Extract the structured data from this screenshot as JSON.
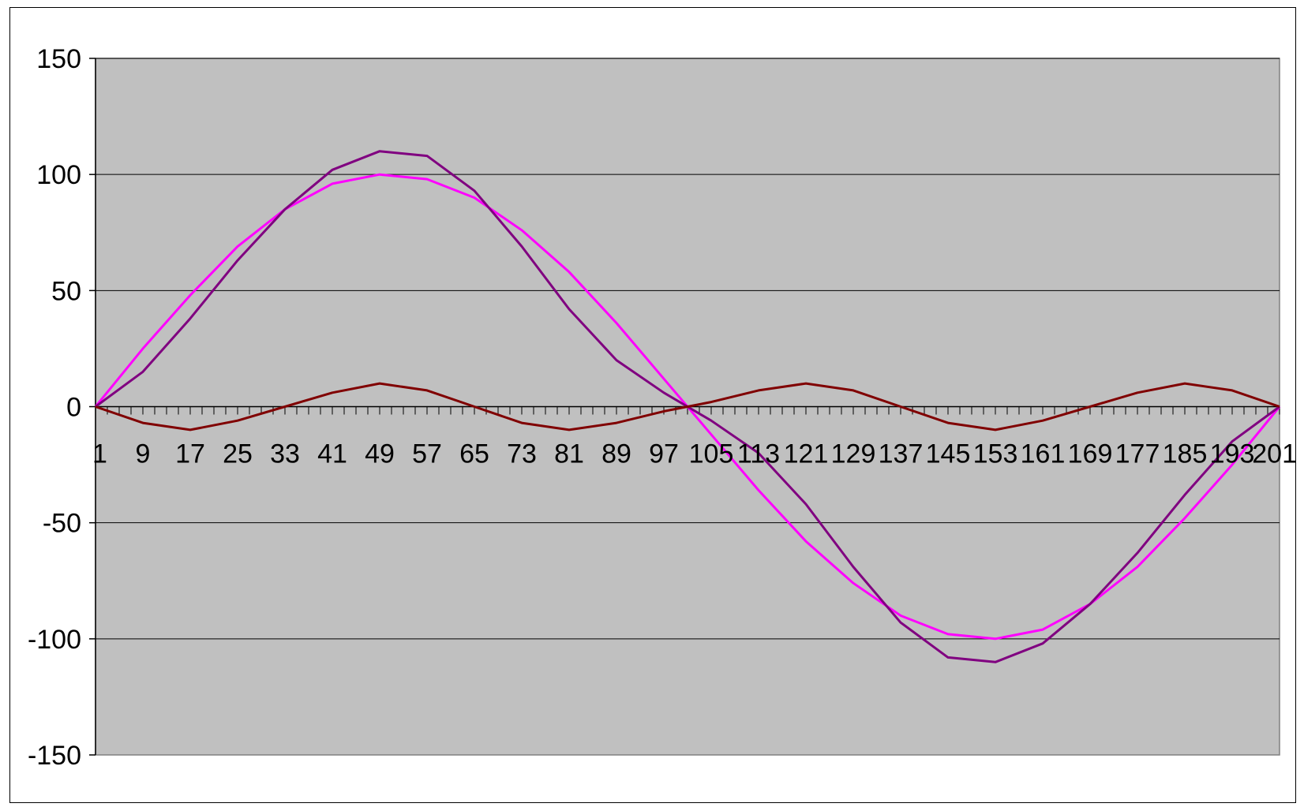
{
  "chart_data": {
    "type": "line",
    "title": "",
    "xlabel": "",
    "ylabel": "",
    "x_start": 1,
    "x_end": 201,
    "x_tick_labels": [
      "1",
      "9",
      "17",
      "25",
      "33",
      "41",
      "49",
      "57",
      "65",
      "73",
      "81",
      "89",
      "97",
      "105",
      "113",
      "121",
      "129",
      "137",
      "145",
      "153",
      "161",
      "169",
      "177",
      "185",
      "193",
      "201"
    ],
    "ylim": [
      -150,
      150
    ],
    "y_ticks": [
      150,
      100,
      50,
      0,
      -50,
      -100,
      -150
    ],
    "y_tick_labels": [
      "150",
      "100",
      "50",
      "0",
      "-50",
      "-100",
      "-150"
    ],
    "grid": "horizontal",
    "legend": "none",
    "plot_background": "#c0c0c0",
    "series": [
      {
        "color": "#ff00ff",
        "x": [
          1,
          9,
          17,
          25,
          33,
          41,
          49,
          57,
          65,
          73,
          81,
          89,
          97,
          101,
          105,
          113,
          121,
          129,
          137,
          145,
          153,
          161,
          169,
          177,
          185,
          193,
          201
        ],
        "values": [
          0,
          25,
          48,
          69,
          85,
          96,
          100,
          98,
          90,
          76,
          58,
          36,
          12,
          0,
          -12,
          -36,
          -58,
          -76,
          -90,
          -98,
          -100,
          -96,
          -85,
          -69,
          -48,
          -25,
          0
        ]
      },
      {
        "color": "#800080",
        "x": [
          1,
          9,
          17,
          25,
          33,
          41,
          49,
          57,
          65,
          73,
          81,
          89,
          97,
          101,
          105,
          113,
          121,
          129,
          137,
          145,
          153,
          161,
          169,
          177,
          185,
          193,
          201
        ],
        "values": [
          0,
          15,
          38,
          63,
          85,
          102,
          110,
          108,
          93,
          69,
          42,
          20,
          6,
          0,
          -6,
          -20,
          -42,
          -69,
          -93,
          -108,
          -110,
          -102,
          -85,
          -63,
          -38,
          -15,
          0
        ]
      },
      {
        "color": "#800000",
        "x": [
          1,
          9,
          17,
          25,
          33,
          41,
          49,
          57,
          65,
          73,
          81,
          89,
          97,
          101,
          105,
          113,
          121,
          129,
          137,
          145,
          153,
          161,
          169,
          177,
          185,
          193,
          201
        ],
        "values": [
          0,
          -7,
          -10,
          -6,
          0,
          6,
          10,
          7,
          0,
          -7,
          -10,
          -7,
          -2,
          0,
          2,
          7,
          10,
          7,
          0,
          -7,
          -10,
          -6,
          0,
          6,
          10,
          7,
          0
        ]
      }
    ]
  }
}
